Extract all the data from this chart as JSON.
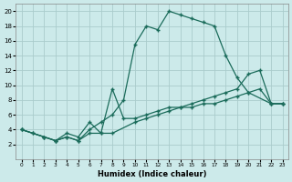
{
  "xlabel": "Humidex (Indice chaleur)",
  "xlim": [
    -0.5,
    23.5
  ],
  "ylim": [
    0,
    21
  ],
  "xticks": [
    0,
    1,
    2,
    3,
    4,
    5,
    6,
    7,
    8,
    9,
    10,
    11,
    12,
    13,
    14,
    15,
    16,
    17,
    18,
    19,
    20,
    21,
    22,
    23
  ],
  "yticks": [
    2,
    4,
    6,
    8,
    10,
    12,
    14,
    16,
    18,
    20
  ],
  "background_color": "#cceaea",
  "grid_color": "#aacccc",
  "line_color": "#1a6b5a",
  "line1_x": [
    0,
    1,
    2,
    3,
    4,
    5,
    6,
    7,
    8,
    9,
    10,
    11,
    12,
    13,
    14,
    15,
    16,
    17,
    18,
    19,
    20,
    22,
    23
  ],
  "line1_y": [
    4,
    3.5,
    3,
    2.5,
    3,
    2.5,
    4,
    5,
    6,
    8,
    15.5,
    18,
    17.5,
    20,
    19.5,
    19,
    18.5,
    18,
    14,
    11,
    9,
    7.5,
    7.5
  ],
  "line2_x": [
    0,
    1,
    2,
    3,
    4,
    5,
    6,
    7,
    8,
    9,
    10,
    11,
    12,
    13,
    14,
    15,
    16,
    17,
    18,
    19,
    20,
    21,
    22,
    23
  ],
  "line2_y": [
    4,
    3.5,
    3,
    2.5,
    3.5,
    3,
    5,
    3.5,
    9.5,
    5.5,
    5.5,
    6,
    6.5,
    7,
    7,
    7.5,
    8,
    8.5,
    9,
    9.5,
    11.5,
    12,
    7.5,
    7.5
  ],
  "line3_x": [
    0,
    2,
    3,
    4,
    5,
    6,
    7,
    8,
    10,
    11,
    12,
    13,
    14,
    15,
    16,
    17,
    18,
    19,
    20,
    21,
    22,
    23
  ],
  "line3_y": [
    4,
    3,
    2.5,
    3,
    2.5,
    3.5,
    3.5,
    3.5,
    5,
    5.5,
    6,
    6.5,
    7,
    7,
    7.5,
    7.5,
    8,
    8.5,
    9,
    9.5,
    7.5,
    7.5
  ]
}
